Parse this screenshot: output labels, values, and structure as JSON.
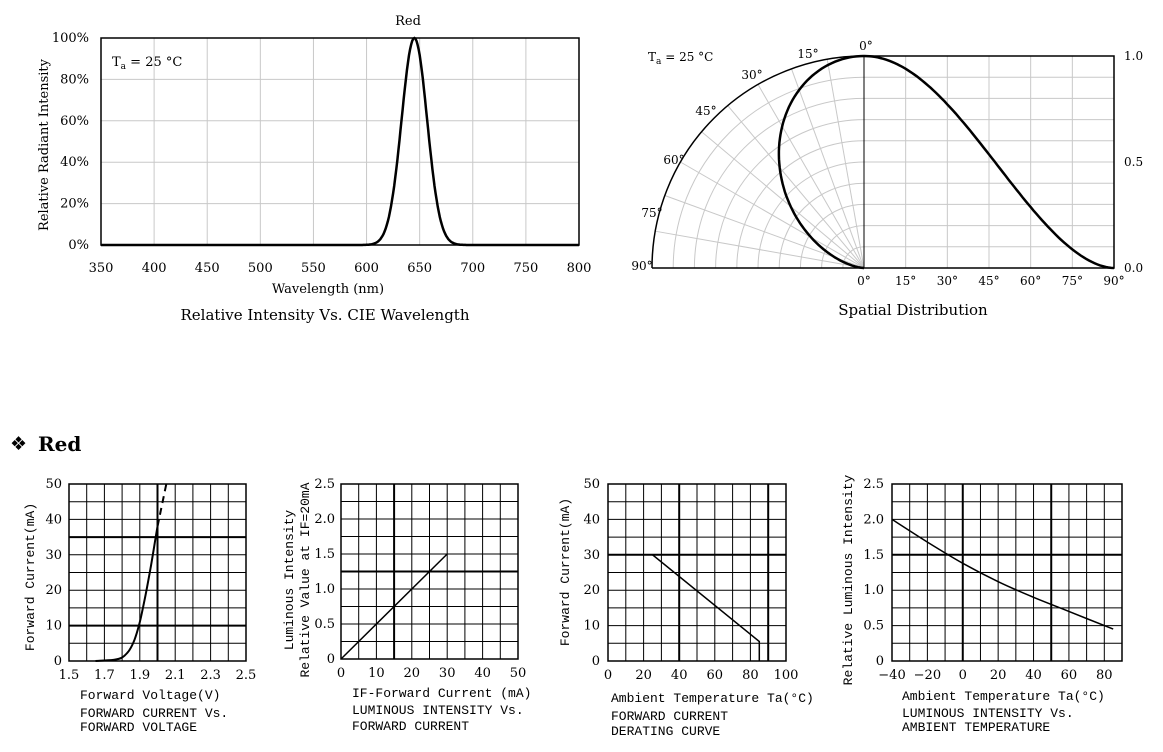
{
  "section": {
    "bullet": "❖",
    "title": "Red"
  },
  "chart_data": [
    {
      "id": "spectrum",
      "type": "line",
      "series_label": "Red",
      "annotation": "Ta = 25 °C",
      "annotation_main": "T",
      "annotation_sub": "a",
      "annotation_rest": " = 25 °C",
      "xlabel": "Wavelength (nm)",
      "ylabel": "Relative  Radiant Intensity",
      "caption": "Relative Intensity Vs. CIE Wavelength",
      "xlim": [
        350,
        800
      ],
      "ylim": [
        0,
        100
      ],
      "xticks": [
        "350",
        "400",
        "450",
        "500",
        "550",
        "600",
        "650",
        "700",
        "750",
        "800"
      ],
      "yticks": [
        "0%",
        "20%",
        "40%",
        "60%",
        "80%",
        "100%"
      ],
      "peak_nm": 645,
      "sigma_nm": 12,
      "grid": true
    },
    {
      "id": "spatial",
      "type": "line",
      "annotation_main": "T",
      "annotation_sub": "a",
      "annotation_rest": " = 25 °C",
      "caption": "Spatial Distribution",
      "angle_labels": [
        "0°",
        "15°",
        "30°",
        "45°",
        "60°",
        "75°",
        "90°"
      ],
      "xticks": [
        "0°",
        "15°",
        "30°",
        "45°",
        "60°",
        "75°",
        "90°"
      ],
      "yticks": [
        "0.0",
        "0.5",
        "1.0"
      ],
      "grid": true
    },
    {
      "id": "ivcurve",
      "type": "line",
      "xlabel": "Forward Voltage(V)",
      "ylabel": "Forward Current(mA)",
      "caption_line1": "FORWARD CURRENT Vs.",
      "caption_line2": "FORWARD VOLTAGE",
      "xlim": [
        1.5,
        2.5
      ],
      "ylim": [
        0,
        50
      ],
      "xticks": [
        "1.5",
        "1.7",
        "1.9",
        "2.1",
        "2.3",
        "2.5"
      ],
      "yticks": [
        "0",
        "10",
        "20",
        "30",
        "40",
        "50"
      ],
      "x": [
        1.65,
        1.75,
        1.8,
        1.84,
        1.87,
        1.9,
        1.93,
        1.96,
        1.98,
        2.0
      ],
      "y": [
        0,
        0.3,
        1,
        3,
        6,
        11,
        18,
        26,
        32,
        38
      ],
      "dashed_x": [
        2.0,
        2.025,
        2.05
      ],
      "dashed_y": [
        38,
        44,
        50
      ],
      "grid": true
    },
    {
      "id": "lumcurrent",
      "type": "line",
      "xlabel": "IF-Forward Current (mA)",
      "ylabel_line1": "Luminous Intensity",
      "ylabel_line2": "Relative Value at IF=20mA",
      "caption_line1": "LUMINOUS INTENSITY Vs.",
      "caption_line2": "FORWARD CURRENT",
      "xlim": [
        0,
        50
      ],
      "ylim": [
        0,
        2.5
      ],
      "xticks": [
        "0",
        "10",
        "20",
        "30",
        "40",
        "50"
      ],
      "yticks": [
        "0",
        "0.5",
        "1.0",
        "1.5",
        "2.0",
        "2.5"
      ],
      "x": [
        0,
        30
      ],
      "y": [
        0,
        1.5
      ],
      "grid": true
    },
    {
      "id": "derating",
      "type": "line",
      "xlabel": "Ambient Temperature Ta(°C)",
      "ylabel": "Forward Current(mA)",
      "caption_line1": "FORWARD CURRENT",
      "caption_line2": "DERATING CURVE",
      "xlim": [
        0,
        100
      ],
      "ylim": [
        0,
        50
      ],
      "xticks": [
        "0",
        "20",
        "40",
        "60",
        "80",
        "100"
      ],
      "yticks": [
        "0",
        "10",
        "20",
        "30",
        "40",
        "50"
      ],
      "x": [
        0,
        25,
        85,
        85
      ],
      "y": [
        30,
        30,
        5.5,
        0
      ],
      "grid": true
    },
    {
      "id": "lumtemp",
      "type": "line",
      "xlabel": "Ambient Temperature Ta(°C)",
      "ylabel": "Relative Luminous Intensity",
      "caption_line1": "LUMINOUS INTENSITY Vs.",
      "caption_line2": "AMBIENT TEMPERATURE",
      "xlim": [
        -40,
        90
      ],
      "ylim": [
        0,
        2.5
      ],
      "xticks": [
        "−40",
        "−20",
        "0",
        "20",
        "40",
        "60",
        "80"
      ],
      "yticks": [
        "0",
        "0.5",
        "1.0",
        "1.5",
        "2.0",
        "2.5"
      ],
      "x": [
        -40,
        -20,
        0,
        20,
        40,
        60,
        85
      ],
      "y": [
        2.0,
        1.68,
        1.38,
        1.12,
        0.9,
        0.7,
        0.45
      ],
      "grid": true
    }
  ]
}
